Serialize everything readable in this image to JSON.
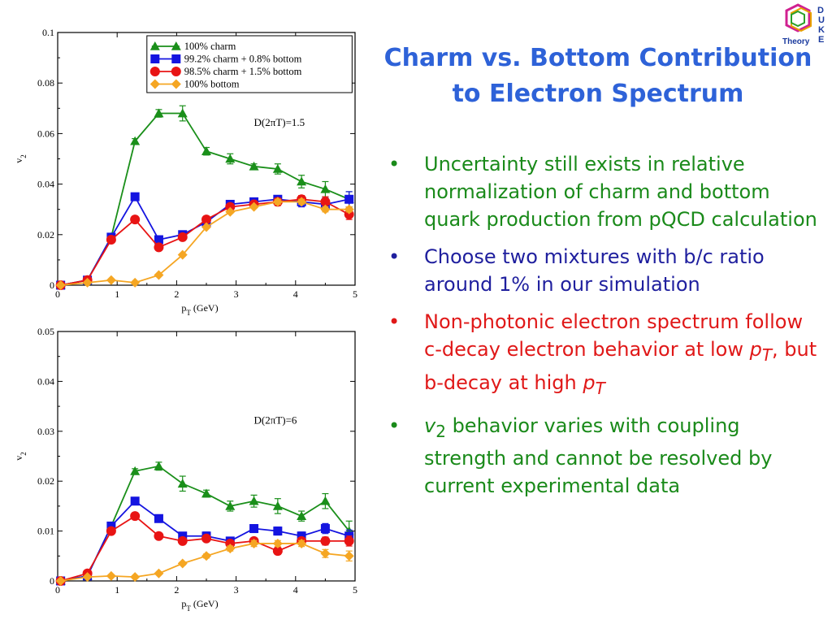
{
  "slide": {
    "title_line1": "Charm vs. Bottom Contribution",
    "title_line2": "to Electron Spectrum"
  },
  "logo": {
    "letters": [
      "D",
      "U",
      "K",
      "E"
    ],
    "text": "Theory"
  },
  "bullets": [
    {
      "text": "Uncertainty still exists in relative normalization of charm and bottom quark production from pQCD calculation",
      "color": "#1a8a1a"
    },
    {
      "text": "Choose two mixtures with b/c ratio around 1% in our simulation",
      "color": "#1f1f9e"
    },
    {
      "text_parts": [
        "Non-photonic electron spectrum follow c-decay electron behavior at low ",
        "p",
        "T",
        ", but b-decay at high ",
        "p",
        "T"
      ],
      "color": "#e01818"
    },
    {
      "text_parts": [
        "v",
        "2",
        " behavior varies with coupling strength and cannot be resolved by current experimental data"
      ],
      "color": "#1a8a1a"
    }
  ],
  "colors": {
    "green": "#1a8f1a",
    "blue": "#1414e0",
    "red": "#e81414",
    "orange": "#f5a623"
  },
  "chart_data": [
    {
      "type": "line",
      "annotation": "D(2πT)=1.5",
      "xlabel": "pT (GeV)",
      "ylabel": "v2",
      "xlim": [
        0,
        5
      ],
      "ylim": [
        0,
        0.1
      ],
      "xticks": [
        "0",
        "1",
        "2",
        "3",
        "4",
        "5"
      ],
      "yticks": [
        "0",
        "0.02",
        "0.04",
        "0.06",
        "0.08",
        "0.1"
      ],
      "ytick_values": [
        0,
        0.02,
        0.04,
        0.06,
        0.08,
        0.1
      ],
      "legend": "top-right",
      "series": [
        {
          "name": "100% charm",
          "marker": "triangle",
          "color": "#1a8f1a",
          "x": [
            0.05,
            0.5,
            0.9,
            1.3,
            1.7,
            2.1,
            2.5,
            2.9,
            3.3,
            3.7,
            4.1,
            4.5,
            4.9
          ],
          "y": [
            0.0,
            0.002,
            0.019,
            0.057,
            0.068,
            0.068,
            0.053,
            0.05,
            0.047,
            0.046,
            0.041,
            0.038,
            0.034
          ],
          "err": [
            0,
            0.001,
            0.001,
            0.001,
            0.0015,
            0.003,
            0.0015,
            0.002,
            0.001,
            0.002,
            0.0025,
            0.003,
            0.003
          ]
        },
        {
          "name": "99.2% charm + 0.8% bottom",
          "marker": "square",
          "color": "#1414e0",
          "x": [
            0.05,
            0.5,
            0.9,
            1.3,
            1.7,
            2.1,
            2.5,
            2.9,
            3.3,
            3.7,
            4.1,
            4.5,
            4.9
          ],
          "y": [
            0.0,
            0.002,
            0.019,
            0.035,
            0.018,
            0.02,
            0.025,
            0.032,
            0.033,
            0.034,
            0.033,
            0.032,
            0.034
          ],
          "err": [
            0,
            0.001,
            0.001,
            0.001,
            0.001,
            0.001,
            0.001,
            0.001,
            0.0015,
            0.0015,
            0.002,
            0.0025,
            0.003
          ]
        },
        {
          "name": "98.5% charm + 1.5% bottom",
          "marker": "circle",
          "color": "#e81414",
          "x": [
            0.05,
            0.5,
            0.9,
            1.3,
            1.7,
            2.1,
            2.5,
            2.9,
            3.3,
            3.7,
            4.1,
            4.5,
            4.9
          ],
          "y": [
            0.0,
            0.002,
            0.018,
            0.026,
            0.015,
            0.019,
            0.026,
            0.031,
            0.032,
            0.033,
            0.034,
            0.033,
            0.028
          ],
          "err": [
            0,
            0.001,
            0.001,
            0.001,
            0.001,
            0.001,
            0.001,
            0.001,
            0.001,
            0.0015,
            0.0015,
            0.002,
            0.002
          ]
        },
        {
          "name": "100% bottom",
          "marker": "diamond",
          "color": "#f5a623",
          "x": [
            0.05,
            0.5,
            0.9,
            1.3,
            1.7,
            2.1,
            2.5,
            2.9,
            3.3,
            3.7,
            4.1,
            4.5,
            4.9
          ],
          "y": [
            0.0,
            0.001,
            0.002,
            0.001,
            0.004,
            0.012,
            0.023,
            0.029,
            0.031,
            0.033,
            0.033,
            0.03,
            0.03
          ],
          "err": [
            0,
            0,
            0,
            0,
            0,
            0.0005,
            0.0005,
            0.0005,
            0.0005,
            0.001,
            0.001,
            0.001,
            0.001
          ]
        }
      ]
    },
    {
      "type": "line",
      "annotation": "D(2πT)=6",
      "xlabel": "pT (GeV)",
      "ylabel": "v2",
      "xlim": [
        0,
        5
      ],
      "ylim": [
        0,
        0.05
      ],
      "xticks": [
        "0",
        "1",
        "2",
        "3",
        "4",
        "5"
      ],
      "yticks": [
        "0",
        "0.01",
        "0.02",
        "0.03",
        "0.04",
        "0.05"
      ],
      "ytick_values": [
        0,
        0.01,
        0.02,
        0.03,
        0.04,
        0.05
      ],
      "series": [
        {
          "name": "100% charm",
          "marker": "triangle",
          "color": "#1a8f1a",
          "x": [
            0.05,
            0.5,
            0.9,
            1.3,
            1.7,
            2.1,
            2.5,
            2.9,
            3.3,
            3.7,
            4.1,
            4.5,
            4.9
          ],
          "y": [
            0.0,
            0.001,
            0.011,
            0.022,
            0.023,
            0.0195,
            0.0175,
            0.015,
            0.016,
            0.015,
            0.013,
            0.016,
            0.01
          ],
          "err": [
            0,
            0.0005,
            0.0005,
            0.0005,
            0.0008,
            0.0015,
            0.0007,
            0.001,
            0.0012,
            0.0015,
            0.001,
            0.0015,
            0.002
          ]
        },
        {
          "name": "99.2% charm + 0.8% bottom",
          "marker": "square",
          "color": "#1414e0",
          "x": [
            0.05,
            0.5,
            0.9,
            1.3,
            1.7,
            2.1,
            2.5,
            2.9,
            3.3,
            3.7,
            4.1,
            4.5,
            4.9
          ],
          "y": [
            0.0,
            0.001,
            0.011,
            0.016,
            0.0125,
            0.009,
            0.009,
            0.008,
            0.0105,
            0.01,
            0.009,
            0.0105,
            0.009
          ],
          "err": [
            0,
            0.0005,
            0.0005,
            0.0005,
            0.0005,
            0.0006,
            0.0008,
            0.0006,
            0.0008,
            0.0008,
            0.0008,
            0.001,
            0.0012
          ]
        },
        {
          "name": "98.5% charm + 1.5% bottom",
          "marker": "circle",
          "color": "#e81414",
          "x": [
            0.05,
            0.5,
            0.9,
            1.3,
            1.7,
            2.1,
            2.5,
            2.9,
            3.3,
            3.7,
            4.1,
            4.5,
            4.9
          ],
          "y": [
            0.0,
            0.0015,
            0.01,
            0.013,
            0.009,
            0.008,
            0.0085,
            0.0075,
            0.008,
            0.006,
            0.008,
            0.008,
            0.008
          ],
          "err": [
            0,
            0.0005,
            0.0005,
            0.0005,
            0.0005,
            0.0006,
            0.0006,
            0.0006,
            0.0006,
            0.0007,
            0.0007,
            0.0008,
            0.001
          ]
        },
        {
          "name": "100% bottom",
          "marker": "diamond",
          "color": "#f5a623",
          "x": [
            0.05,
            0.5,
            0.9,
            1.3,
            1.7,
            2.1,
            2.5,
            2.9,
            3.3,
            3.7,
            4.1,
            4.5,
            4.9
          ],
          "y": [
            0.0,
            0.0008,
            0.001,
            0.0008,
            0.0015,
            0.0035,
            0.005,
            0.0065,
            0.0075,
            0.0075,
            0.0075,
            0.0055,
            0.005
          ],
          "err": [
            0,
            0,
            0,
            0,
            0.0002,
            0.0003,
            0.0004,
            0.0005,
            0.0006,
            0.0006,
            0.0006,
            0.0008,
            0.001
          ]
        }
      ]
    }
  ]
}
